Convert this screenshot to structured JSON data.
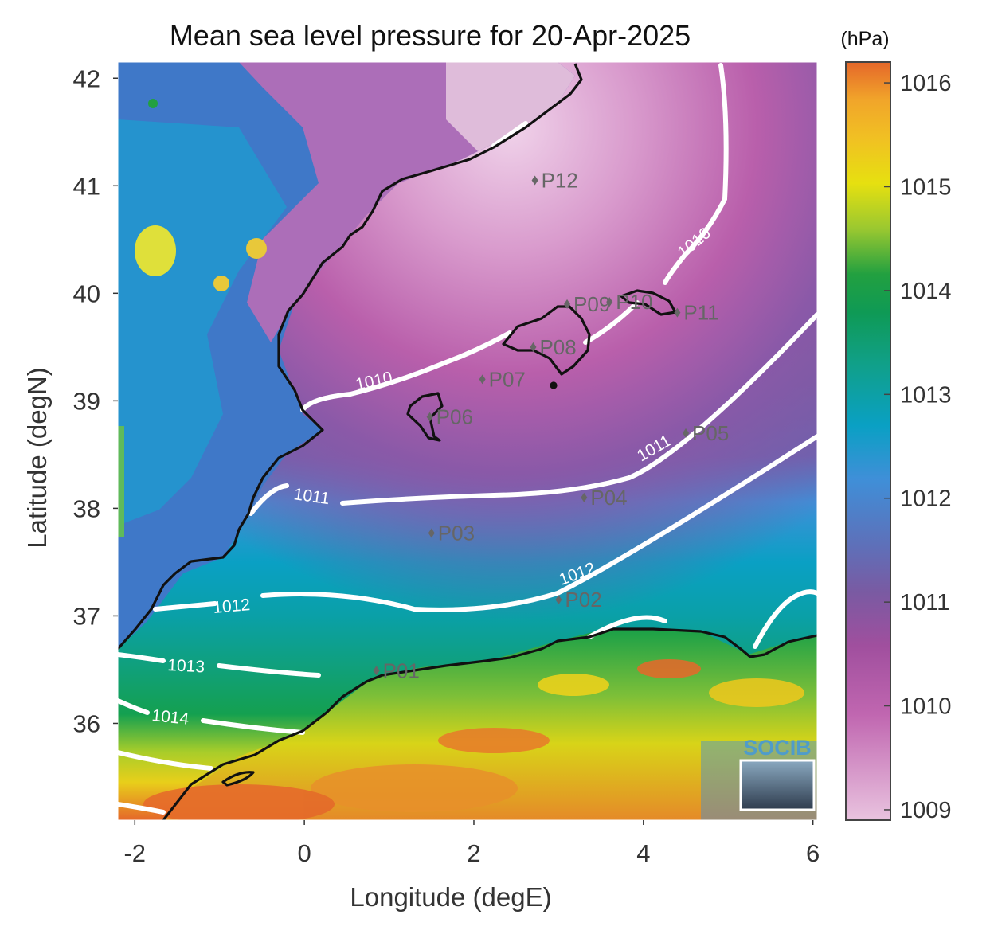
{
  "title": "Mean sea level pressure for 20-Apr-2025",
  "units": "(hPa)",
  "xlabel": "Longitude (degE)",
  "ylabel": "Latitude (degN)",
  "logo_text": "SOCIB",
  "x_ticks": [
    -2,
    0,
    2,
    4,
    6
  ],
  "y_ticks": [
    36,
    37,
    38,
    39,
    40,
    41,
    42
  ],
  "colorbar_ticks": [
    1009,
    1010,
    1011,
    1012,
    1013,
    1014,
    1015,
    1016
  ],
  "map": {
    "lon_range": [
      -2.2,
      6.05
    ],
    "lat_range": [
      35.1,
      42.15
    ],
    "colorbar_range": [
      1008.9,
      1016.2
    ],
    "colormap": [
      "#e9c3df",
      "#c066b0",
      "#7a5aa2",
      "#3f8fd8",
      "#0aa0c4",
      "#12957a",
      "#22a040",
      "#e6e010",
      "#f1a52a",
      "#e5672a"
    ],
    "contour_color": "#ffffff",
    "coastline_color": "#111111",
    "station_marker_color": "#666666"
  },
  "stations": [
    {
      "label": "P01",
      "lon": 0.85,
      "lat": 36.49
    },
    {
      "label": "P02",
      "lon": 3.0,
      "lat": 37.15
    },
    {
      "label": "P03",
      "lon": 1.5,
      "lat": 37.77
    },
    {
      "label": "P04",
      "lon": 3.3,
      "lat": 38.1
    },
    {
      "label": "P05",
      "lon": 4.5,
      "lat": 38.7
    },
    {
      "label": "P06",
      "lon": 1.48,
      "lat": 38.85
    },
    {
      "label": "P07",
      "lon": 2.1,
      "lat": 39.2
    },
    {
      "label": "P08",
      "lon": 2.7,
      "lat": 39.5
    },
    {
      "label": "P09",
      "lon": 3.1,
      "lat": 39.9
    },
    {
      "label": "P10",
      "lon": 3.6,
      "lat": 39.92
    },
    {
      "label": "P11",
      "lon": 4.4,
      "lat": 39.82
    },
    {
      "label": "P12",
      "lon": 2.72,
      "lat": 41.05
    }
  ],
  "contours": [
    {
      "level": "1010",
      "label": "1010"
    },
    {
      "level": "1011",
      "label": "1011"
    },
    {
      "level": "1012",
      "label": "1012"
    },
    {
      "level": "1013",
      "label": "1013"
    },
    {
      "level": "1014",
      "label": "1014"
    }
  ]
}
